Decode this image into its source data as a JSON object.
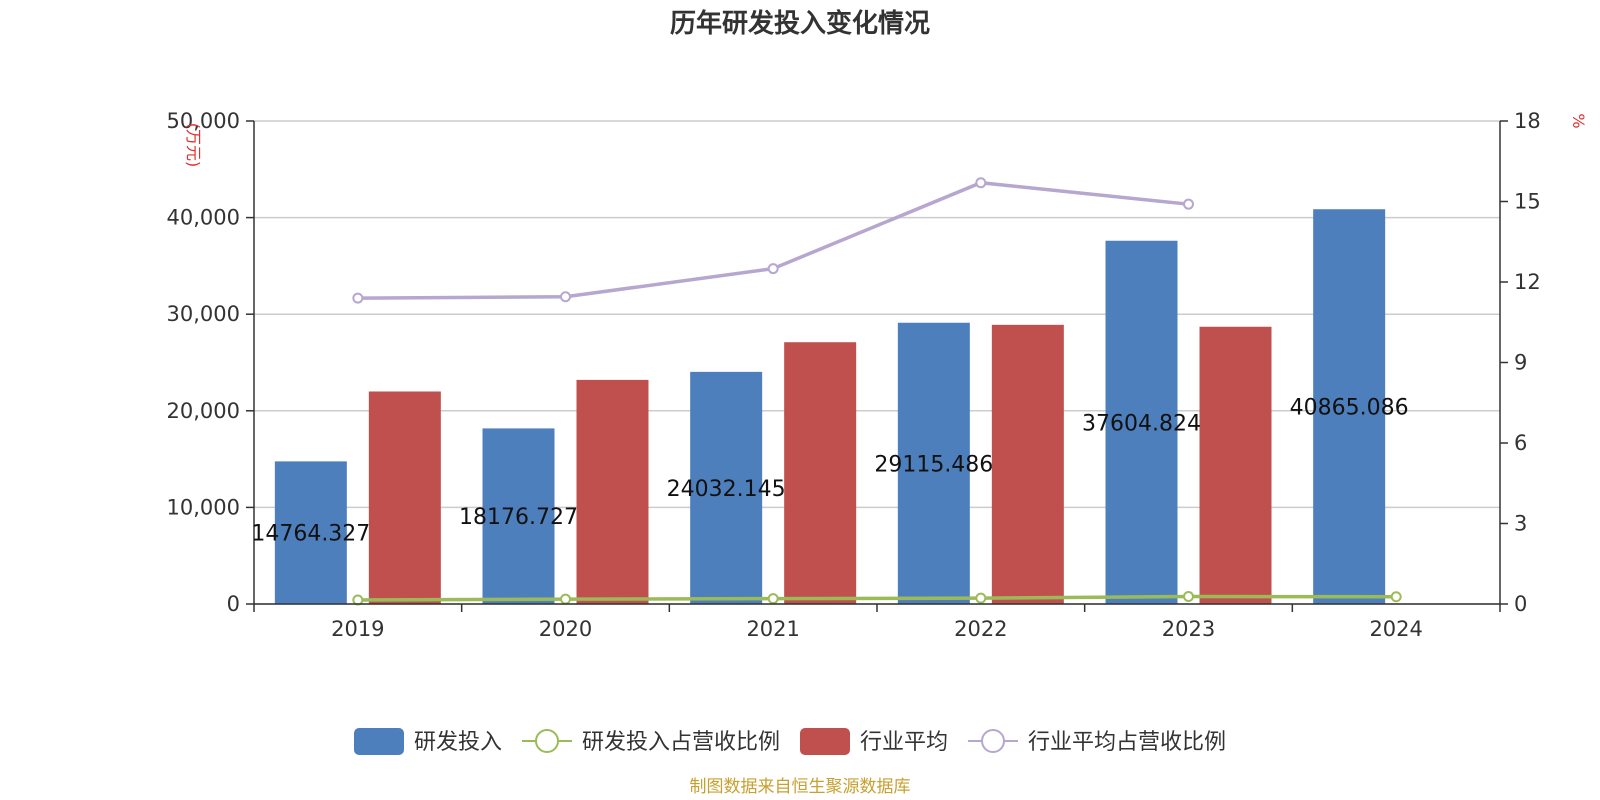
{
  "chart_data": {
    "type": "bar",
    "title": "历年研发投入变化情况",
    "categories": [
      "2019",
      "2020",
      "2021",
      "2022",
      "2023",
      "2024"
    ],
    "y_left": {
      "unit": "(万元)",
      "min": 0,
      "max": 50000,
      "ticks": [
        0,
        10000,
        20000,
        30000,
        40000,
        50000
      ],
      "tick_labels": [
        "0",
        "10,000",
        "20,000",
        "30,000",
        "40,000",
        "50,000"
      ]
    },
    "y_right": {
      "unit": "%",
      "min": 0,
      "max": 18,
      "ticks": [
        0,
        3,
        6,
        9,
        12,
        15,
        18
      ],
      "tick_labels": [
        "0",
        "3",
        "6",
        "9",
        "12",
        "15",
        "18"
      ]
    },
    "series": [
      {
        "name": "研发投入",
        "type": "bar",
        "axis": "left",
        "color": "#4e7fbd",
        "values": [
          14764.327,
          18176.727,
          24032.145,
          29115.486,
          37604.824,
          40865.086
        ],
        "labels": [
          "14764.327",
          "18176.727",
          "24032.145",
          "29115.486",
          "37604.824",
          "40865.086"
        ]
      },
      {
        "name": "研发投入占营收比例",
        "type": "line",
        "axis": "right",
        "color": "#9bbb59",
        "values": [
          0.15,
          0.18,
          0.2,
          0.22,
          0.28,
          0.27
        ]
      },
      {
        "name": "行业平均",
        "type": "bar",
        "axis": "left",
        "color": "#c0504d",
        "values": [
          22000,
          23200,
          27100,
          28900,
          28700,
          null
        ]
      },
      {
        "name": "行业平均占营收比例",
        "type": "line",
        "axis": "right",
        "color": "#b6a6d0",
        "values": [
          11.4,
          11.45,
          12.5,
          15.7,
          14.9,
          null
        ]
      }
    ],
    "grid": true,
    "legend_position": "bottom-center"
  },
  "source_text": "制图数据来自恒生聚源数据库"
}
